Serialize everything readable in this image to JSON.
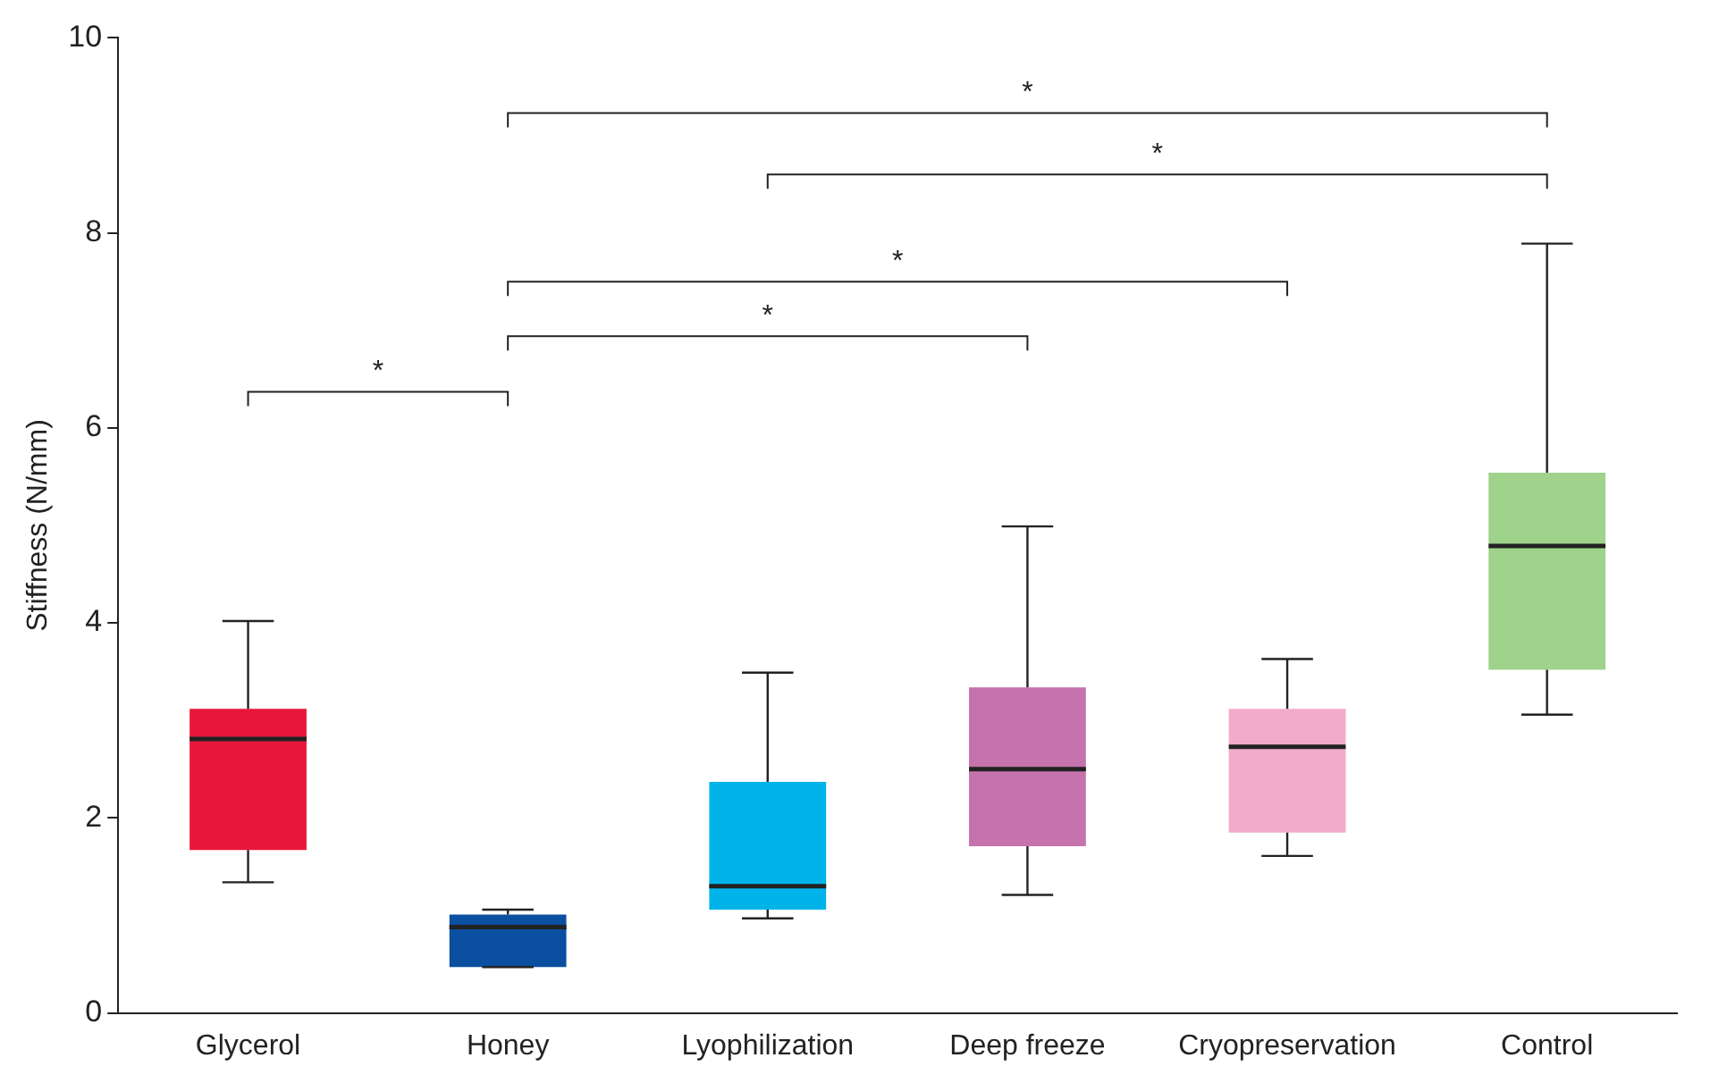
{
  "chart_data": {
    "type": "box",
    "ylabel": "Stiffness (N/mm)",
    "categories": [
      "Glycerol",
      "Honey",
      "Lyophilization",
      "Deep freeze",
      "Cryopreservation",
      "Control"
    ],
    "colors": [
      "#e8173a",
      "#0a4fa0",
      "#00b4ea",
      "#c672ad",
      "#f2abcb",
      "#9fd28a"
    ],
    "boxes": [
      {
        "low": 1.34,
        "q1": 1.67,
        "median": 2.81,
        "q3": 3.12,
        "high": 4.02
      },
      {
        "low": 0.47,
        "q1": 0.47,
        "median": 0.88,
        "q3": 1.01,
        "high": 1.06
      },
      {
        "low": 0.97,
        "q1": 1.06,
        "median": 1.3,
        "q3": 2.37,
        "high": 3.49
      },
      {
        "low": 1.21,
        "q1": 1.71,
        "median": 2.5,
        "q3": 3.34,
        "high": 4.99
      },
      {
        "low": 1.61,
        "q1": 1.85,
        "median": 2.73,
        "q3": 3.12,
        "high": 3.63
      },
      {
        "low": 3.06,
        "q1": 3.52,
        "median": 4.79,
        "q3": 5.54,
        "high": 7.89
      }
    ],
    "ylim": [
      0,
      10
    ],
    "yticks": [
      0,
      2,
      4,
      6,
      8,
      10
    ],
    "grid": false,
    "legend": false,
    "annotations": [
      "*",
      "*",
      "*",
      "*",
      "*"
    ]
  }
}
